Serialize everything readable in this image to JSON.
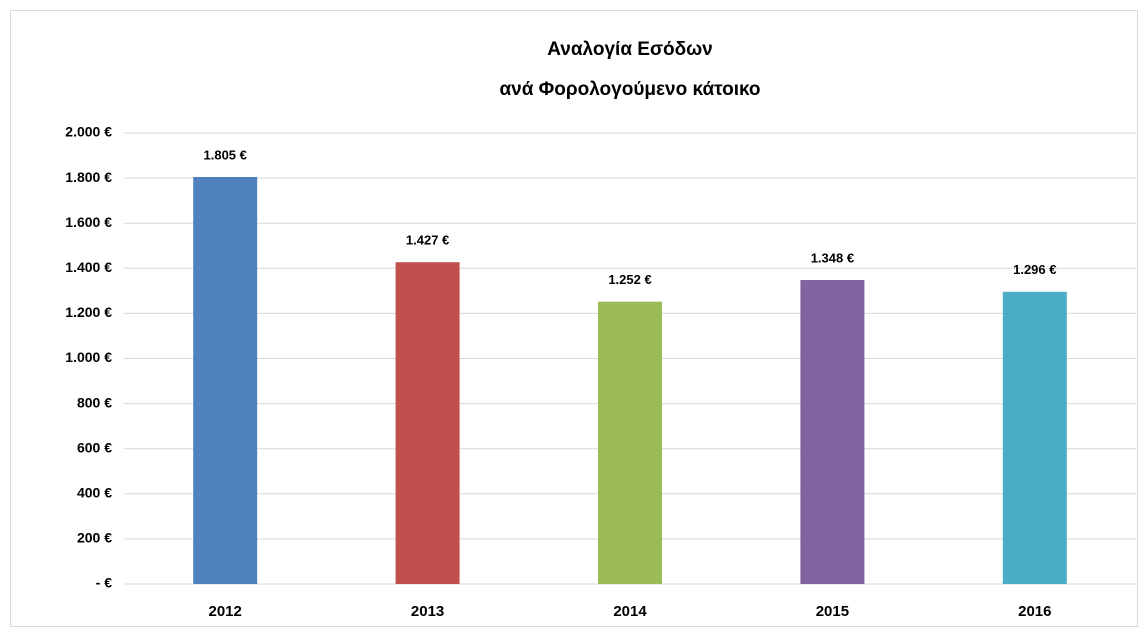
{
  "chart_data": {
    "type": "bar",
    "title": [
      "Αναλογία Εσόδων",
      "ανά Φορολογούμενο κάτοικο"
    ],
    "categories": [
      "2012",
      "2013",
      "2014",
      "2015",
      "2016"
    ],
    "values": [
      1805,
      1427,
      1252,
      1348,
      1296
    ],
    "value_labels": [
      "1.805 €",
      "1.427 €",
      "1.252 €",
      "1.348 €",
      "1.296 €"
    ],
    "colors": [
      "#4f81bd",
      "#c0504d",
      "#9bbb59",
      "#8064a2",
      "#4bacc6"
    ],
    "ylim": [
      0,
      2000
    ],
    "yticks": [
      {
        "value": 0,
        "label": "-  €"
      },
      {
        "value": 200,
        "label": "200 €"
      },
      {
        "value": 400,
        "label": "400 €"
      },
      {
        "value": 600,
        "label": "600 €"
      },
      {
        "value": 800,
        "label": "800 €"
      },
      {
        "value": 1000,
        "label": "1.000 €"
      },
      {
        "value": 1200,
        "label": "1.200 €"
      },
      {
        "value": 1400,
        "label": "1.400 €"
      },
      {
        "value": 1600,
        "label": "1.600 €"
      },
      {
        "value": 1800,
        "label": "1.800 €"
      },
      {
        "value": 2000,
        "label": "2.000 €"
      }
    ],
    "grid": true
  }
}
